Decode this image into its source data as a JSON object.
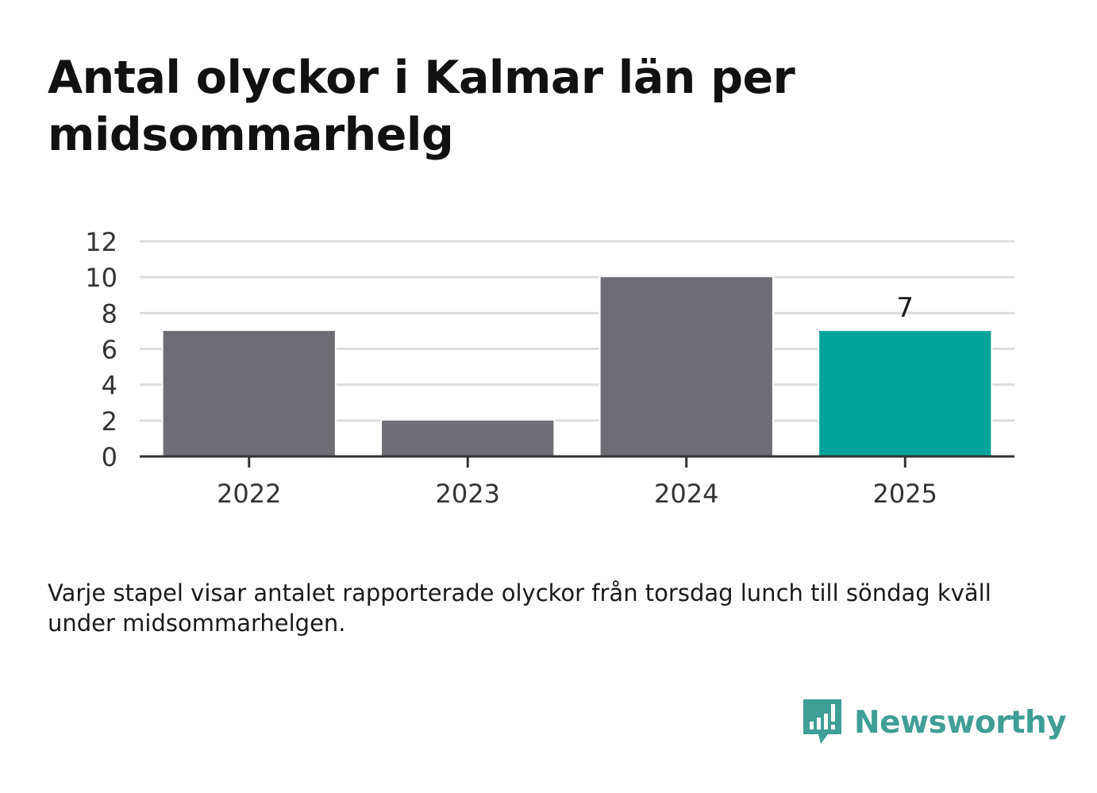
{
  "chart_data": {
    "type": "bar",
    "title": "Antal olyckor i Kalmar län per midsommarhelg",
    "categories": [
      "2022",
      "2023",
      "2024",
      "2025"
    ],
    "values": [
      7,
      2,
      10,
      7
    ],
    "data_labels": [
      "",
      "",
      "",
      "7"
    ],
    "yticks": [
      "0",
      "2",
      "4",
      "6",
      "8",
      "10",
      "12"
    ],
    "ylim": [
      0,
      12
    ],
    "xlabel": "",
    "ylabel": "",
    "grid": true,
    "colors": {
      "default_bar": "#6e6d73",
      "highlight_bar": "#00a39a",
      "gridline": "#dddddd",
      "axis": "#333333"
    },
    "highlight_index": 3
  },
  "note": "Varje stapel visar antalet rapporterade olyckor från torsdag lunch till söndag kväll under midsommarhelgen.",
  "brand": {
    "name": "Newsworthy",
    "icon": "newsworthy-logo-icon",
    "color": "#3f9e96"
  }
}
